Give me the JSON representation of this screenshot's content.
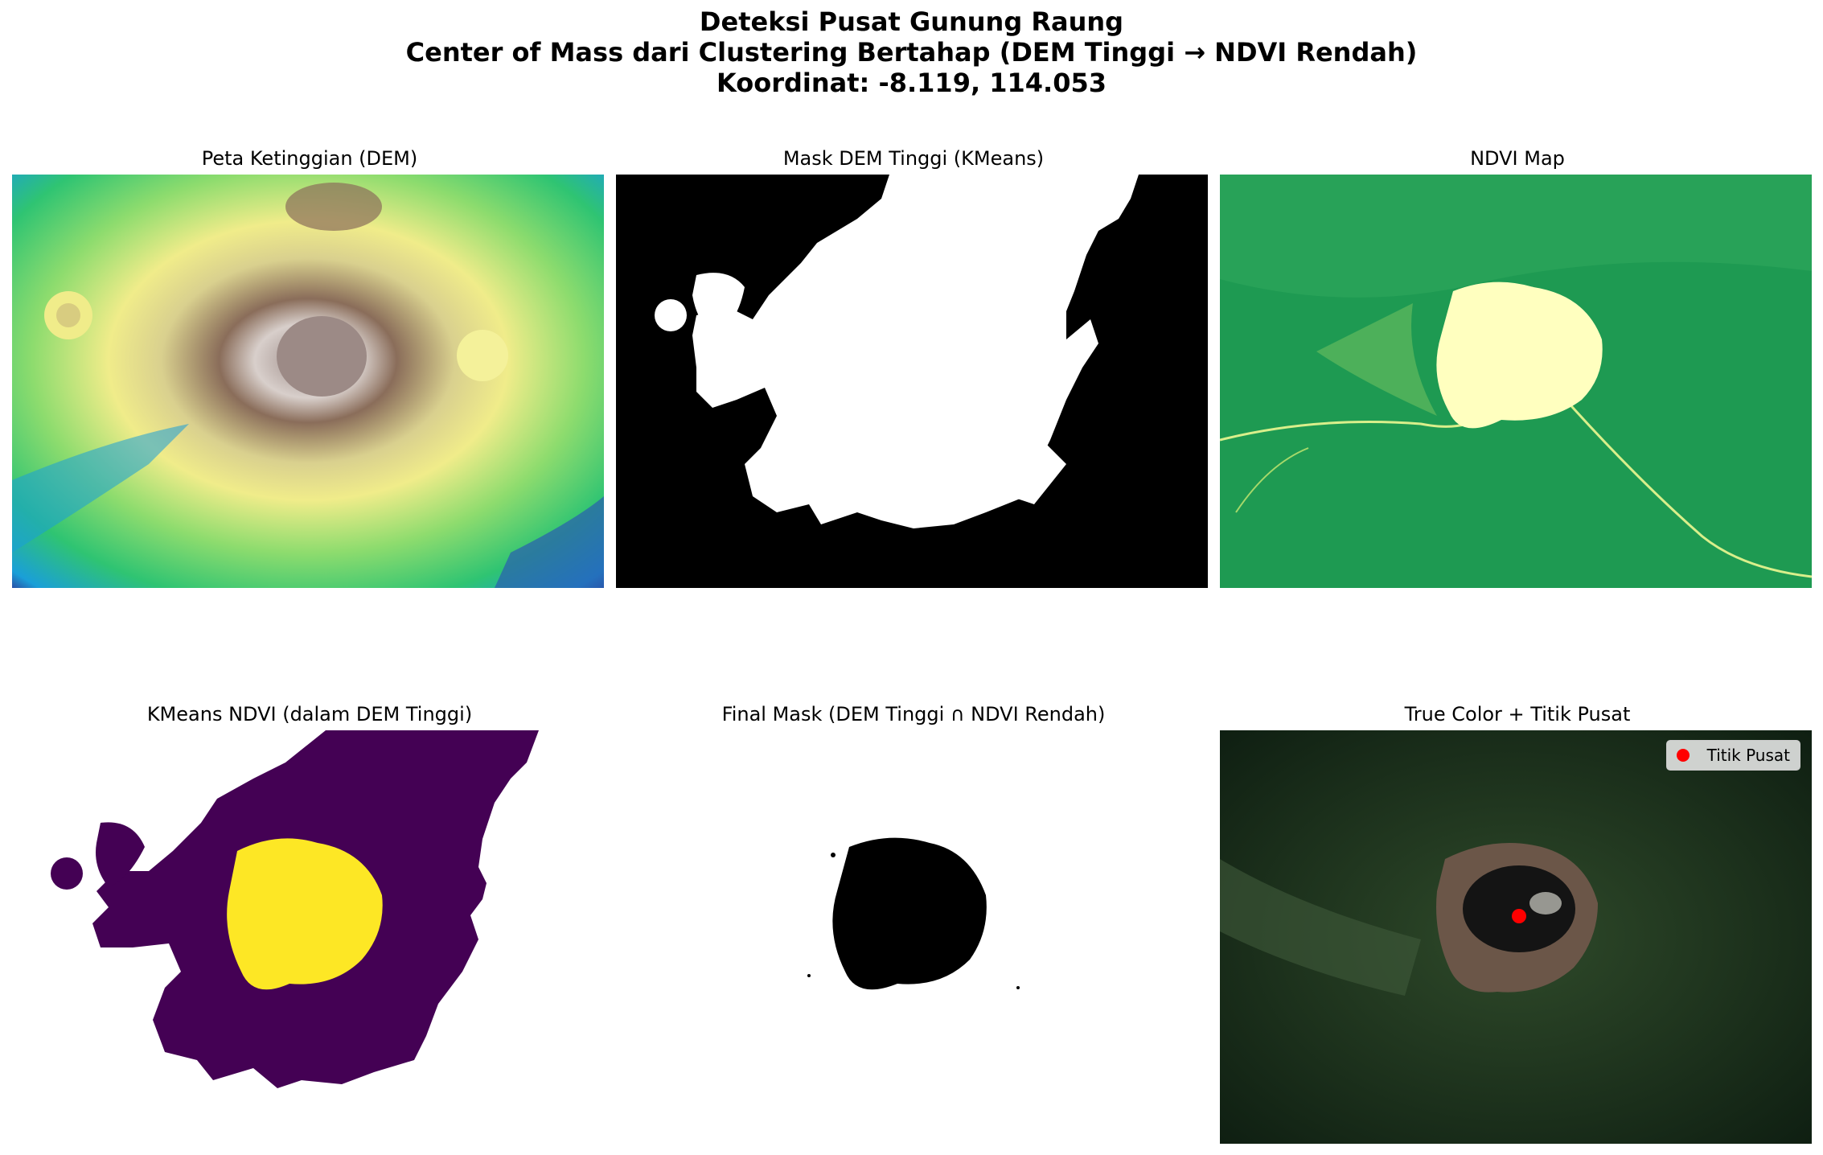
{
  "figure": {
    "title_line1": "Deteksi Pusat Gunung Raung",
    "title_line2": "Center of Mass dari Clustering Bertahap (DEM Tinggi → NDVI Rendah)",
    "title_line3": "Koordinat: -8.119, 114.053"
  },
  "panels": [
    {
      "title": "Peta Ketinggian (DEM)"
    },
    {
      "title": "Mask DEM Tinggi (KMeans)"
    },
    {
      "title": "NDVI Map"
    },
    {
      "title": "KMeans NDVI (dalam DEM Tinggi)"
    },
    {
      "title": "Final Mask (DEM Tinggi ∩ NDVI Rendah)"
    },
    {
      "title": "True Color + Titik Pusat"
    }
  ],
  "legend": {
    "label": "Titik Pusat",
    "marker_color": "#ff0000"
  },
  "colors": {
    "kmeans_low": "#440154",
    "kmeans_high": "#fde725",
    "ndvi_green": "#1a9850",
    "ndvi_pale": "#ffffbf"
  }
}
